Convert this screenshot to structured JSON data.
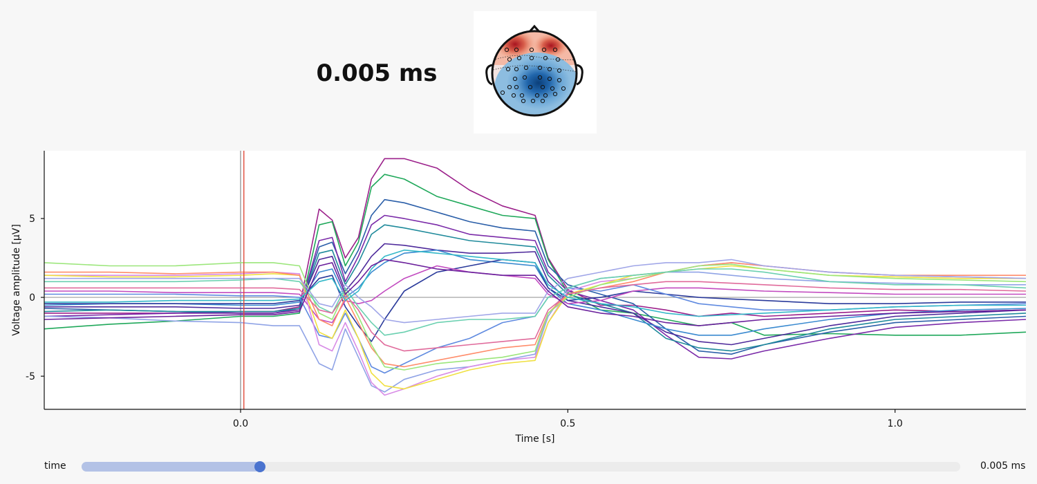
{
  "header": {
    "time_title": "0.005 ms"
  },
  "topomap": {
    "description_icon": "head-topomap",
    "colors": {
      "positive": "#b2182b",
      "negative": "#2166ac",
      "neutral": "#f7f7f7"
    }
  },
  "slider": {
    "label": "time",
    "value_text": "0.005 ms",
    "value_s": 0.005,
    "min_s": -0.3,
    "max_s": 1.2,
    "handle_color": "#4a73cf",
    "fill_color": "#b3c2e6"
  },
  "chart_data": {
    "type": "line",
    "title": "",
    "xlabel": "Time [s]",
    "ylabel": "Voltage amplitude [µV]",
    "xlim": [
      -0.3,
      1.2
    ],
    "ylim": [
      -7.1,
      9.3
    ],
    "xticks": [
      0.0,
      0.5,
      1.0
    ],
    "xtick_labels": [
      "0.0",
      "0.5",
      "1.0"
    ],
    "yticks": [
      5,
      0,
      -5
    ],
    "ytick_labels": [
      "5",
      "0",
      "-5"
    ],
    "grid": false,
    "cursor": {
      "x": 0.005,
      "color": "#e04a3a"
    },
    "zero_line": {
      "x": 0.0,
      "color": "#888888"
    },
    "x": [
      -0.3,
      -0.2,
      -0.1,
      0.0,
      0.05,
      0.09,
      0.12,
      0.14,
      0.16,
      0.18,
      0.2,
      0.22,
      0.25,
      0.3,
      0.35,
      0.4,
      0.45,
      0.47,
      0.5,
      0.55,
      0.6,
      0.65,
      0.7,
      0.75,
      0.8,
      0.9,
      1.0,
      1.1,
      1.2
    ],
    "series": [
      {
        "color": "#9b1f8a",
        "values": [
          -1.0,
          -1.0,
          -1.0,
          -0.9,
          -0.9,
          -0.6,
          5.6,
          4.9,
          2.5,
          3.8,
          7.5,
          8.8,
          8.8,
          8.2,
          6.8,
          5.8,
          5.2,
          2.5,
          0.5,
          -0.5,
          -0.5,
          -0.8,
          -1.2,
          -1.0,
          -1.2,
          -1.0,
          -0.8,
          -0.9,
          -0.8
        ]
      },
      {
        "color": "#1fa85a",
        "values": [
          -2.0,
          -1.7,
          -1.5,
          -1.2,
          -1.2,
          -1.0,
          4.6,
          4.8,
          2.0,
          3.5,
          7.0,
          7.8,
          7.5,
          6.4,
          5.8,
          5.2,
          5.0,
          2.4,
          0.3,
          -0.8,
          -1.0,
          -1.4,
          -1.8,
          -1.6,
          -2.4,
          -2.3,
          -2.4,
          -2.4,
          -2.2
        ]
      },
      {
        "color": "#2a5ea8",
        "values": [
          -0.7,
          -0.8,
          -0.9,
          -1.0,
          -1.0,
          -0.7,
          3.2,
          3.5,
          1.5,
          3.0,
          5.2,
          6.2,
          6.0,
          5.4,
          4.8,
          4.4,
          4.2,
          2.0,
          0.8,
          0.2,
          -0.4,
          -2.0,
          -3.4,
          -3.6,
          -3.0,
          -2.2,
          -1.6,
          -1.4,
          -1.2
        ]
      },
      {
        "color": "#7a2aa8",
        "values": [
          -1.2,
          -1.1,
          -1.0,
          -1.0,
          -1.0,
          -0.8,
          3.6,
          3.8,
          1.0,
          2.6,
          4.6,
          5.2,
          5.0,
          4.6,
          4.0,
          3.8,
          3.6,
          1.6,
          0.4,
          -0.2,
          -0.8,
          -2.4,
          -3.8,
          -3.9,
          -3.4,
          -2.6,
          -1.9,
          -1.6,
          -1.4
        ]
      },
      {
        "color": "#1f8a9b",
        "values": [
          -0.9,
          -0.8,
          -0.9,
          -0.9,
          -0.9,
          -0.7,
          2.8,
          3.0,
          0.8,
          2.2,
          4.0,
          4.6,
          4.4,
          4.0,
          3.6,
          3.4,
          3.2,
          1.4,
          0.2,
          -0.4,
          -1.0,
          -2.6,
          -3.2,
          -3.4,
          -3.0,
          -2.0,
          -1.4,
          -1.2,
          -1.0
        ]
      },
      {
        "color": "#4e2a9b",
        "values": [
          -0.6,
          -0.6,
          -0.6,
          -0.7,
          -0.7,
          -0.5,
          2.4,
          2.6,
          0.4,
          1.4,
          2.6,
          3.4,
          3.3,
          3.0,
          2.8,
          2.8,
          2.9,
          1.0,
          -0.2,
          -0.6,
          -1.0,
          -2.2,
          -2.8,
          -3.0,
          -2.6,
          -1.8,
          -1.2,
          -1.0,
          -0.8
        ]
      },
      {
        "color": "#3a8ad0",
        "values": [
          -0.5,
          -0.4,
          -0.4,
          -0.5,
          -0.5,
          -0.3,
          1.6,
          1.8,
          0.0,
          0.6,
          1.6,
          2.2,
          2.8,
          3.0,
          2.4,
          2.2,
          2.0,
          0.6,
          -0.4,
          -0.8,
          -1.4,
          -2.0,
          -2.4,
          -2.4,
          -2.0,
          -1.4,
          -1.0,
          -0.8,
          -0.7
        ]
      },
      {
        "color": "#2a3a9b",
        "values": [
          -0.4,
          -0.4,
          -0.4,
          -0.4,
          -0.4,
          -0.2,
          1.2,
          1.4,
          -0.6,
          -1.8,
          -2.8,
          -1.4,
          0.4,
          1.6,
          2.0,
          2.4,
          2.2,
          0.6,
          -0.2,
          0.0,
          0.4,
          0.2,
          0.0,
          -0.1,
          -0.2,
          -0.4,
          -0.4,
          -0.3,
          -0.3
        ]
      },
      {
        "color": "#c24ac0",
        "values": [
          0.4,
          0.4,
          0.3,
          0.3,
          0.3,
          0.2,
          -1.4,
          -1.6,
          -0.2,
          -0.4,
          -0.2,
          0.4,
          1.2,
          2.0,
          1.6,
          1.4,
          1.2,
          0.2,
          -0.4,
          -0.2,
          0.4,
          0.6,
          0.6,
          0.5,
          0.4,
          0.3,
          0.2,
          0.2,
          0.2
        ]
      },
      {
        "color": "#5f8ae0",
        "values": [
          0.2,
          0.2,
          0.2,
          0.1,
          0.1,
          0.0,
          -2.4,
          -2.6,
          -1.0,
          -2.6,
          -4.4,
          -4.8,
          -4.2,
          -3.2,
          -2.6,
          -1.6,
          -1.2,
          0.0,
          0.6,
          0.4,
          0.8,
          0.2,
          -0.4,
          -0.6,
          -0.8,
          -0.8,
          -0.6,
          -0.5,
          -0.4
        ]
      },
      {
        "color": "#8fa3e6",
        "values": [
          -1.2,
          -1.3,
          -1.5,
          -1.6,
          -1.8,
          -1.8,
          -4.2,
          -4.6,
          -2.0,
          -3.8,
          -5.6,
          -6.0,
          -5.2,
          -4.6,
          -4.4,
          -4.0,
          -3.6,
          -1.2,
          0.6,
          1.2,
          1.4,
          1.6,
          1.6,
          1.4,
          1.2,
          1.0,
          0.9,
          0.8,
          0.8
        ]
      },
      {
        "color": "#d88be6",
        "values": [
          1.4,
          1.4,
          1.4,
          1.5,
          1.6,
          1.5,
          -3.0,
          -3.4,
          -1.6,
          -3.4,
          -5.4,
          -6.2,
          -5.8,
          -5.0,
          -4.4,
          -4.0,
          -3.8,
          -1.6,
          0.4,
          1.0,
          1.2,
          1.6,
          2.0,
          2.2,
          2.0,
          1.6,
          1.4,
          1.3,
          1.2
        ]
      },
      {
        "color": "#f0e040",
        "values": [
          1.4,
          1.3,
          1.3,
          1.4,
          1.5,
          1.4,
          -2.2,
          -2.6,
          -0.8,
          -2.6,
          -4.8,
          -5.6,
          -5.8,
          -5.2,
          -4.6,
          -4.2,
          -4.0,
          -1.6,
          0.2,
          0.8,
          1.4,
          1.6,
          1.8,
          2.0,
          1.8,
          1.4,
          1.3,
          1.2,
          1.2
        ]
      },
      {
        "color": "#ff8c6a",
        "values": [
          1.6,
          1.6,
          1.5,
          1.6,
          1.6,
          1.4,
          -1.4,
          -1.8,
          0.0,
          -1.6,
          -3.2,
          -4.2,
          -4.4,
          -4.0,
          -3.6,
          -3.2,
          -3.0,
          -1.0,
          0.2,
          0.6,
          1.0,
          1.6,
          2.0,
          2.2,
          2.0,
          1.6,
          1.4,
          1.4,
          1.4
        ]
      },
      {
        "color": "#9be67a",
        "values": [
          2.2,
          2.0,
          2.0,
          2.2,
          2.2,
          2.0,
          -1.0,
          -1.4,
          0.4,
          -1.2,
          -3.0,
          -4.4,
          -4.6,
          -4.2,
          -4.0,
          -3.8,
          -3.4,
          -1.0,
          0.0,
          0.8,
          1.2,
          1.6,
          2.0,
          2.1,
          1.8,
          1.4,
          1.2,
          1.1,
          1.0
        ]
      },
      {
        "color": "#6ad0b0",
        "values": [
          1.0,
          1.0,
          1.0,
          1.1,
          1.2,
          1.0,
          -0.6,
          -1.0,
          0.6,
          -0.6,
          -1.6,
          -2.4,
          -2.2,
          -1.6,
          -1.4,
          -1.4,
          -1.2,
          0.0,
          0.6,
          1.2,
          1.4,
          1.6,
          1.8,
          1.8,
          1.6,
          1.0,
          0.8,
          0.8,
          0.6
        ]
      },
      {
        "color": "#a0a6e8",
        "values": [
          1.2,
          1.2,
          1.2,
          1.2,
          1.2,
          1.2,
          -0.4,
          -0.6,
          0.8,
          0.0,
          -0.6,
          -1.4,
          -1.6,
          -1.4,
          -1.2,
          -1.0,
          -1.0,
          0.4,
          1.2,
          1.6,
          2.0,
          2.2,
          2.2,
          2.4,
          2.0,
          1.6,
          1.4,
          1.3,
          1.2
        ]
      },
      {
        "color": "#e06a9b",
        "values": [
          0.6,
          0.6,
          0.6,
          0.6,
          0.6,
          0.5,
          -0.8,
          -1.0,
          0.2,
          -0.8,
          -2.2,
          -3.0,
          -3.4,
          -3.2,
          -3.0,
          -2.8,
          -2.6,
          -0.8,
          0.2,
          0.6,
          0.8,
          1.0,
          1.0,
          0.9,
          0.8,
          0.6,
          0.5,
          0.5,
          0.4
        ]
      },
      {
        "color": "#33b8c8",
        "values": [
          -0.3,
          -0.3,
          -0.2,
          -0.2,
          -0.2,
          -0.1,
          1.0,
          1.2,
          -0.2,
          0.4,
          1.8,
          2.6,
          3.0,
          2.8,
          2.6,
          2.4,
          2.2,
          0.8,
          0.0,
          -0.4,
          -0.6,
          -1.0,
          -1.2,
          -1.1,
          -1.0,
          -0.8,
          -0.6,
          -0.5,
          -0.5
        ]
      },
      {
        "color": "#6a1f9b",
        "values": [
          -1.4,
          -1.3,
          -1.2,
          -1.1,
          -1.1,
          -0.9,
          2.0,
          2.2,
          0.2,
          1.0,
          2.0,
          2.4,
          2.2,
          1.8,
          1.6,
          1.4,
          1.4,
          0.4,
          -0.6,
          -1.0,
          -1.2,
          -1.6,
          -1.8,
          -1.6,
          -1.4,
          -1.2,
          -1.0,
          -0.9,
          -0.8
        ]
      }
    ]
  }
}
